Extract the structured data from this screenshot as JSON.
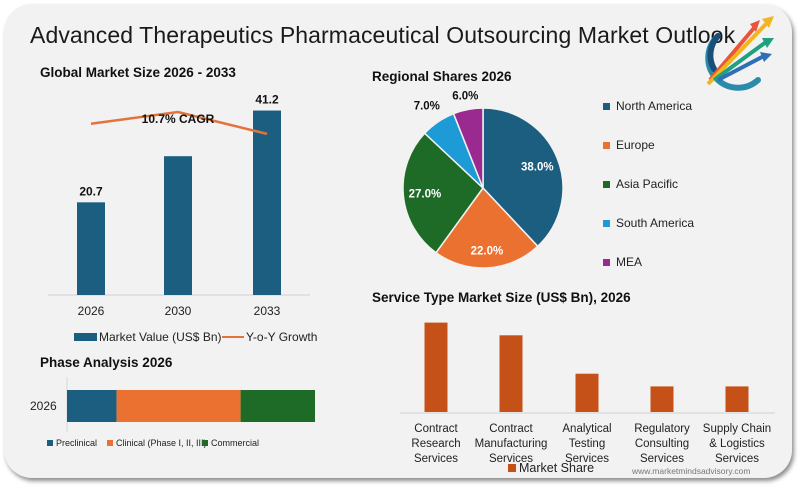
{
  "title": "Advanced Therapeutics Pharmaceutical Outsourcing Market Outlook",
  "watermark": "www.marketmindsadvisory.com",
  "colors": {
    "market_value": "#1b5e80",
    "yoy_line": "#e3733a",
    "north_america": "#1b5e80",
    "europe": "#eb7131",
    "asia_pacific": "#1e6b28",
    "south_america": "#1c9bd6",
    "mea": "#9b2a90",
    "preclinical": "#1b5e80",
    "clinical": "#eb7131",
    "commercial": "#1e6b28",
    "service_bar": "#c55118"
  },
  "chart_data": [
    {
      "id": "global-market-size",
      "type": "bar",
      "title": "Global Market Size 2026 - 2033",
      "categories": [
        "2026",
        "2030",
        "2033"
      ],
      "series": [
        {
          "name": "Market Value (US$ Bn)",
          "type": "bar",
          "values": [
            20.7,
            31.0,
            41.2
          ],
          "labels": [
            "20.7",
            "",
            "41.2"
          ]
        },
        {
          "name": "Y-o-Y Growth",
          "type": "line",
          "values": [
            10.2,
            10.9,
            9.6
          ]
        }
      ],
      "annotation": "10.7% CAGR",
      "ylim": [
        0,
        44
      ],
      "grid": false,
      "legend": "bottom"
    },
    {
      "id": "regional-shares",
      "type": "pie",
      "title": "Regional Shares 2026",
      "slices": [
        {
          "label": "North America",
          "value": 38.0,
          "display": "38.0%"
        },
        {
          "label": "Europe",
          "value": 22.0,
          "display": "22.0%"
        },
        {
          "label": "Asia Pacific",
          "value": 27.0,
          "display": "27.0%"
        },
        {
          "label": "South America",
          "value": 7.0,
          "display": "7.0%"
        },
        {
          "label": "MEA",
          "value": 6.0,
          "display": "6.0%"
        }
      ],
      "legend": "right"
    },
    {
      "id": "phase-analysis",
      "type": "bar",
      "orientation": "horizontal-stacked",
      "title": "Phase Analysis 2026",
      "categories": [
        "2026"
      ],
      "series": [
        {
          "name": "Preclinical",
          "values": [
            20
          ]
        },
        {
          "name": "Clinical (Phase I, II, III)",
          "values": [
            50
          ]
        },
        {
          "name": "Commercial",
          "values": [
            30
          ]
        }
      ],
      "legend": "bottom"
    },
    {
      "id": "service-type",
      "type": "bar",
      "title": "Service Type Market Size (US$ Bn), 2026",
      "categories": [
        [
          "Contract",
          "Research",
          "Services"
        ],
        [
          "Contract",
          "Manufacturing",
          "Services"
        ],
        [
          "Analytical",
          "Testing",
          "Services"
        ],
        [
          "Regulatory",
          "Consulting",
          "Services"
        ],
        [
          "Supply Chain",
          "& Logistics",
          "Services"
        ]
      ],
      "series": [
        {
          "name": "Market Share",
          "values": [
            7.0,
            6.0,
            3.0,
            2.0,
            2.0
          ]
        }
      ],
      "ylim": [
        0,
        7.2
      ],
      "grid": false,
      "legend": "bottom"
    }
  ]
}
